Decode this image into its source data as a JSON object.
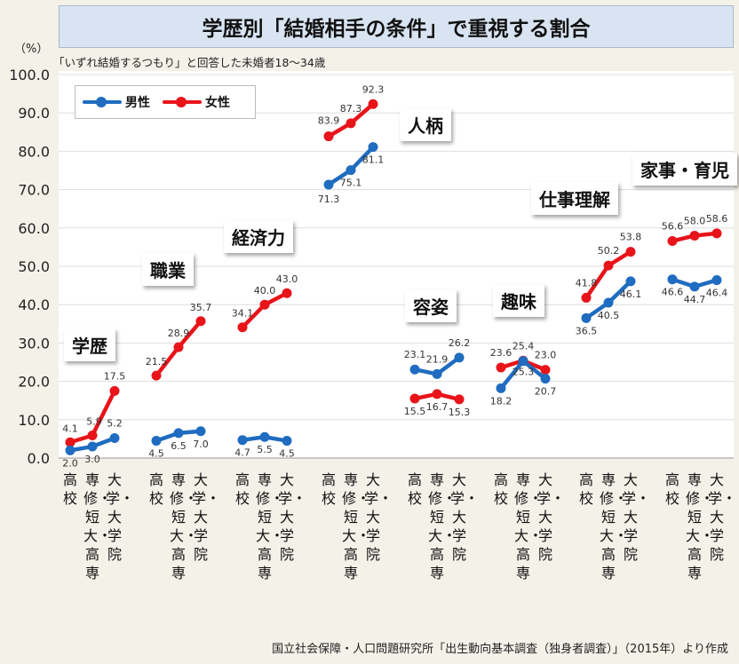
{
  "header": {
    "title": "学歴別「結婚相手の条件」で重視する割合",
    "unit": "（%）",
    "subtitle": "「いずれ結婚するつもり」と回答した未婚者18～34歳",
    "source": "国立社会保障・人口問題研究所「出生動向基本調査（独身者調査）」（2015年）より作成"
  },
  "colors": {
    "male": "#1f6cc0",
    "female": "#e8141a"
  },
  "chart_data": {
    "type": "line",
    "ylim": [
      0,
      100
    ],
    "yticks": [
      "0.0",
      "10.0",
      "20.0",
      "30.0",
      "40.0",
      "50.0",
      "60.0",
      "70.0",
      "80.0",
      "90.0",
      "100.0"
    ],
    "x_labels": [
      "高校",
      "専修・短大・高専",
      "大学・大学院"
    ],
    "legend": [
      "男性",
      "女性"
    ],
    "groups": [
      {
        "name": "学歴",
        "male": [
          2.0,
          3.0,
          5.2
        ],
        "female": [
          4.1,
          5.9,
          17.5
        ]
      },
      {
        "name": "職業",
        "male": [
          4.5,
          6.5,
          7.0
        ],
        "female": [
          21.5,
          28.9,
          35.7
        ]
      },
      {
        "name": "経済力",
        "male": [
          4.7,
          5.5,
          4.5
        ],
        "female": [
          34.1,
          40.0,
          43.0
        ]
      },
      {
        "name": "人柄",
        "male": [
          71.3,
          75.1,
          81.1
        ],
        "female": [
          83.9,
          87.3,
          92.3
        ]
      },
      {
        "name": "容姿",
        "male": [
          23.1,
          21.9,
          26.2
        ],
        "female": [
          15.5,
          16.7,
          15.3
        ]
      },
      {
        "name": "趣味",
        "male": [
          18.2,
          25.3,
          20.7
        ],
        "female": [
          23.6,
          25.4,
          23.0
        ]
      },
      {
        "name": "仕事理解",
        "male": [
          36.5,
          40.5,
          46.1
        ],
        "female": [
          41.8,
          50.2,
          53.8
        ]
      },
      {
        "name": "家事・育児",
        "male": [
          46.6,
          44.7,
          46.4
        ],
        "female": [
          56.6,
          58.0,
          58.6
        ]
      }
    ]
  }
}
